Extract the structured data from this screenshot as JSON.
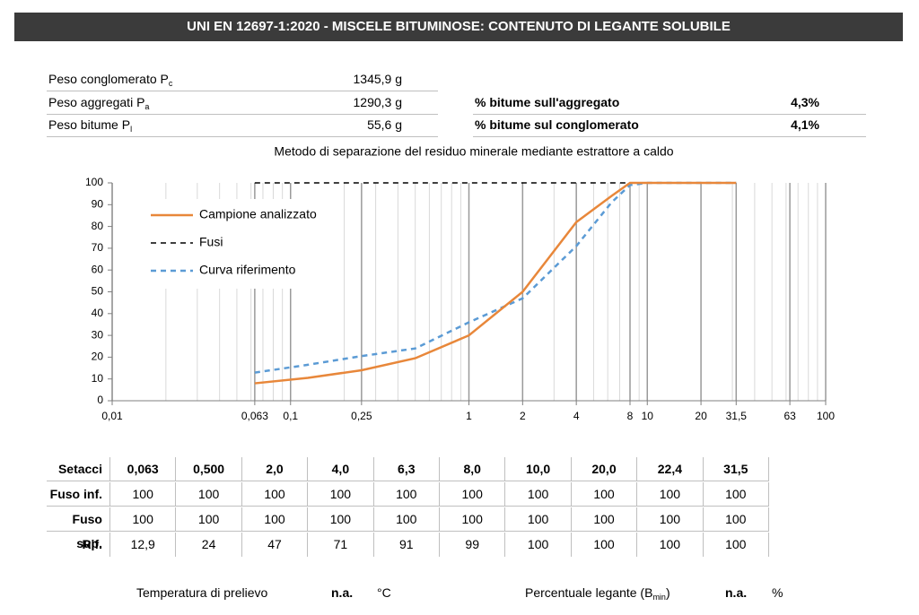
{
  "header": {
    "title": "UNI EN 12697-1:2020 - MISCELE BITUMINOSE: CONTENUTO DI LEGANTE SOLUBILE"
  },
  "weights": [
    {
      "label": "Peso conglomerato P",
      "sub": "c",
      "value": "1345,9 g"
    },
    {
      "label": "Peso aggregati P",
      "sub": "a",
      "value": "1290,3 g"
    },
    {
      "label": "Peso bitume P",
      "sub": "l",
      "value": "55,6 g"
    }
  ],
  "results": [
    {
      "label": "% bitume sull'aggregato",
      "value": "4,3%"
    },
    {
      "label": "% bitume sul conglomerato",
      "value": "4,1%"
    }
  ],
  "chart_data": {
    "type": "line",
    "title": "Metodo di separazione del residuo minerale mediante estrattore a caldo",
    "log_x": true,
    "minor_grid": true,
    "legend": "upper left",
    "xlim": [
      0.01,
      100
    ],
    "ylim": [
      0,
      100
    ],
    "xticks": [
      {
        "value": 0.01,
        "label": "0,01"
      },
      {
        "value": 0.063,
        "label": "0,063"
      },
      {
        "value": 0.1,
        "label": "0,1"
      },
      {
        "value": 0.25,
        "label": "0,25"
      },
      1,
      2,
      4,
      8,
      10,
      20,
      {
        "value": 31.5,
        "label": "31,5"
      },
      63,
      100
    ],
    "yticks": [
      0,
      10,
      20,
      30,
      40,
      50,
      60,
      70,
      80,
      90,
      100
    ],
    "series": [
      {
        "name": "Campione analizzato",
        "color": "#e8873a",
        "style": "solid",
        "x": [
          0.063,
          0.125,
          0.25,
          0.5,
          1,
          2,
          4,
          6.3,
          8,
          10,
          16,
          20,
          31.5
        ],
        "values": [
          8,
          10.5,
          14,
          19.5,
          30,
          50,
          82,
          94,
          100,
          100,
          100,
          100,
          100
        ]
      },
      {
        "name": "Fusi",
        "color": "#000000",
        "style": "dashed",
        "x": [
          0.063,
          31.5
        ],
        "values": [
          100,
          100
        ]
      },
      {
        "name": "Curva riferimento",
        "color": "#5b9bd5",
        "style": "dashed",
        "x": [
          0.063,
          0.125,
          0.25,
          0.5,
          1,
          2,
          4,
          6.3,
          8,
          10,
          20,
          31.5
        ],
        "values": [
          12.9,
          16.5,
          20.5,
          24,
          36,
          47,
          71,
          91,
          99,
          100,
          100,
          100
        ]
      }
    ]
  },
  "sieve_table": {
    "header": [
      "Setacci",
      "0,063",
      "0,500",
      "2,0",
      "4,0",
      "6,3",
      "8,0",
      "10,0",
      "20,0",
      "22,4",
      "31,5"
    ],
    "rows": [
      [
        "Fuso inf.",
        "100",
        "100",
        "100",
        "100",
        "100",
        "100",
        "100",
        "100",
        "100",
        "100"
      ],
      [
        "Fuso sup.",
        "100",
        "100",
        "100",
        "100",
        "100",
        "100",
        "100",
        "100",
        "100",
        "100"
      ],
      [
        "Rif.",
        "12,9",
        "24",
        "47",
        "71",
        "91",
        "99",
        "100",
        "100",
        "100",
        "100"
      ]
    ]
  },
  "footer": [
    {
      "label": "Temperatura di prelievo",
      "value": "n.a.",
      "unit": "°C"
    },
    {
      "label": "Percentuale legante (B",
      "sub": "min",
      "label_end": ")",
      "value": "n.a.",
      "unit": "%"
    }
  ]
}
